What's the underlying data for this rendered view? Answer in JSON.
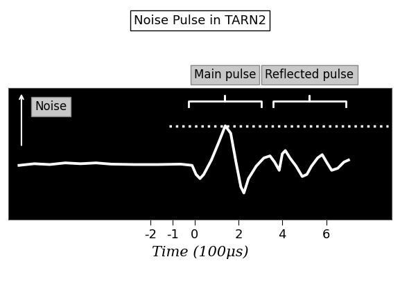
{
  "chart_data": {
    "type": "line",
    "title": "Noise Pulse in TARN2",
    "xlabel": "Time (100μs)",
    "ylabel": "Noise",
    "x": [
      -8.0,
      -7.3,
      -6.6,
      -5.89,
      -5.19,
      -4.49,
      -3.79,
      -2.74,
      -1.68,
      -0.63,
      -0.11,
      0.07,
      0.25,
      0.42,
      0.77,
      1.12,
      1.4,
      1.65,
      1.89,
      2.11,
      2.25,
      2.46,
      2.81,
      3.16,
      3.44,
      3.65,
      3.86,
      4.0,
      4.14,
      4.35,
      4.63,
      4.91,
      5.12,
      5.33,
      5.61,
      5.82,
      6.04,
      6.25,
      6.53,
      6.81,
      7.02
    ],
    "values": [
      6.6,
      6.8,
      6.7,
      6.9,
      6.8,
      6.9,
      6.75,
      6.7,
      6.7,
      6.75,
      6.6,
      5.5,
      5.0,
      5.5,
      7.25,
      9.5,
      11.4,
      10.5,
      7.0,
      4.0,
      3.25,
      5.0,
      6.5,
      7.5,
      7.75,
      7.0,
      6.0,
      8.0,
      8.4,
      7.5,
      6.5,
      5.25,
      5.5,
      6.5,
      7.5,
      7.9,
      6.9,
      6.0,
      6.25,
      7.0,
      7.25
    ],
    "color": "#ffffff",
    "xlim": [
      -8.5,
      9
    ],
    "xticks": [
      -2,
      -1,
      0,
      2,
      4,
      6
    ],
    "ylim": [
      0,
      16
    ],
    "tick_labels": "x",
    "reference_line": {
      "y": 11.4,
      "x": [
        -1.16,
        8.84
      ]
    },
    "annotations": [
      {
        "text": "Main pulse",
        "x": [
          -0.28,
          3.05
        ]
      },
      {
        "text": "Reflected pulse",
        "x": [
          3.58,
          6.9
        ]
      }
    ]
  }
}
